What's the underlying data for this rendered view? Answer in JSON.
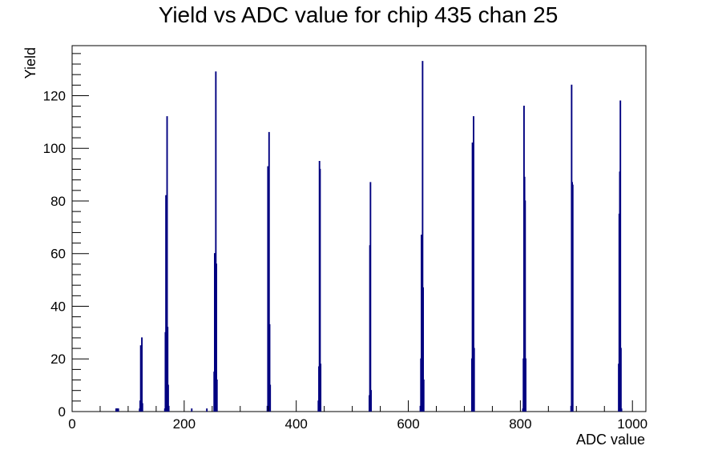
{
  "chart_data": {
    "type": "histogram",
    "title": "Yield vs ADC value for chip 435 chan 25",
    "xlabel": "ADC value",
    "ylabel": "Yield",
    "xlim": [
      0,
      1024
    ],
    "ylim": [
      0,
      139
    ],
    "xticks": [
      "0",
      "200",
      "400",
      "600",
      "800",
      "1000"
    ],
    "yticks": [
      "0",
      "20",
      "40",
      "60",
      "80",
      "100",
      "120"
    ],
    "line_color": "#000080",
    "bin_width": 1,
    "bins": [
      {
        "x": 78,
        "y": 1
      },
      {
        "x": 79,
        "y": 1
      },
      {
        "x": 80,
        "y": 1
      },
      {
        "x": 81,
        "y": 1
      },
      {
        "x": 82,
        "y": 1
      },
      {
        "x": 120,
        "y": 1
      },
      {
        "x": 121,
        "y": 4
      },
      {
        "x": 122,
        "y": 25
      },
      {
        "x": 123,
        "y": 16
      },
      {
        "x": 124,
        "y": 28
      },
      {
        "x": 125,
        "y": 3
      },
      {
        "x": 165,
        "y": 1
      },
      {
        "x": 166,
        "y": 30
      },
      {
        "x": 167,
        "y": 82
      },
      {
        "x": 168,
        "y": 73
      },
      {
        "x": 169,
        "y": 112
      },
      {
        "x": 170,
        "y": 32
      },
      {
        "x": 171,
        "y": 10
      },
      {
        "x": 172,
        "y": 2
      },
      {
        "x": 213,
        "y": 1
      },
      {
        "x": 240,
        "y": 1
      },
      {
        "x": 253,
        "y": 15
      },
      {
        "x": 254,
        "y": 60
      },
      {
        "x": 255,
        "y": 57
      },
      {
        "x": 256,
        "y": 129
      },
      {
        "x": 257,
        "y": 56
      },
      {
        "x": 258,
        "y": 12
      },
      {
        "x": 348,
        "y": 2
      },
      {
        "x": 349,
        "y": 93
      },
      {
        "x": 350,
        "y": 56
      },
      {
        "x": 351,
        "y": 106
      },
      {
        "x": 352,
        "y": 33
      },
      {
        "x": 353,
        "y": 10
      },
      {
        "x": 439,
        "y": 4
      },
      {
        "x": 440,
        "y": 17
      },
      {
        "x": 441,
        "y": 95
      },
      {
        "x": 442,
        "y": 92
      },
      {
        "x": 443,
        "y": 18
      },
      {
        "x": 530,
        "y": 6
      },
      {
        "x": 531,
        "y": 63
      },
      {
        "x": 532,
        "y": 87
      },
      {
        "x": 533,
        "y": 8
      },
      {
        "x": 621,
        "y": 2
      },
      {
        "x": 622,
        "y": 20
      },
      {
        "x": 623,
        "y": 67
      },
      {
        "x": 624,
        "y": 61
      },
      {
        "x": 625,
        "y": 133
      },
      {
        "x": 626,
        "y": 47
      },
      {
        "x": 627,
        "y": 12
      },
      {
        "x": 713,
        "y": 20
      },
      {
        "x": 714,
        "y": 102
      },
      {
        "x": 715,
        "y": 63
      },
      {
        "x": 716,
        "y": 112
      },
      {
        "x": 717,
        "y": 24
      },
      {
        "x": 804,
        "y": 1
      },
      {
        "x": 805,
        "y": 20
      },
      {
        "x": 806,
        "y": 116
      },
      {
        "x": 807,
        "y": 89
      },
      {
        "x": 808,
        "y": 80
      },
      {
        "x": 809,
        "y": 20
      },
      {
        "x": 890,
        "y": 2
      },
      {
        "x": 891,
        "y": 124
      },
      {
        "x": 892,
        "y": 87
      },
      {
        "x": 893,
        "y": 86
      },
      {
        "x": 975,
        "y": 18
      },
      {
        "x": 976,
        "y": 75
      },
      {
        "x": 977,
        "y": 91
      },
      {
        "x": 978,
        "y": 118
      },
      {
        "x": 979,
        "y": 24
      },
      {
        "x": 980,
        "y": 1
      }
    ]
  }
}
